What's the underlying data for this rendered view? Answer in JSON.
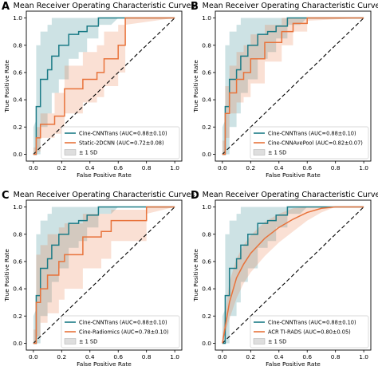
{
  "chart_data": [
    {
      "type": "line",
      "panel_label": "A",
      "title": "Mean Receiver Operating Characteristic Curves",
      "xlabel": "False Positive Rate",
      "ylabel": "True Positive Rate",
      "xlim": [
        -0.05,
        1.05
      ],
      "ylim": [
        -0.05,
        1.05
      ],
      "xticks": [
        "0.0",
        "0.2",
        "0.4",
        "0.6",
        "0.8",
        "1.0"
      ],
      "yticks": [
        "0.0",
        "0.2",
        "0.4",
        "0.6",
        "0.8",
        "1.0"
      ],
      "grid": false,
      "legend_position": "lower-right",
      "band_label": "± 1 SD",
      "series": [
        {
          "name": "Cine-CNNTrans (AUC=0.88±0.10)",
          "color": "#1b7b86",
          "x": [
            0,
            0.02,
            0.02,
            0.05,
            0.05,
            0.1,
            0.1,
            0.13,
            0.13,
            0.18,
            0.18,
            0.25,
            0.25,
            0.32,
            0.32,
            0.38,
            0.38,
            0.46,
            0.46,
            0.55,
            0.6,
            1
          ],
          "y": [
            0,
            0,
            0.35,
            0.35,
            0.55,
            0.55,
            0.62,
            0.62,
            0.72,
            0.72,
            0.8,
            0.8,
            0.88,
            0.88,
            0.9,
            0.9,
            0.94,
            0.94,
            1,
            1,
            1,
            1
          ],
          "upper": [
            0.2,
            0.25,
            0.8,
            0.8,
            0.9,
            0.9,
            0.95,
            0.95,
            1,
            1,
            1,
            1,
            1,
            1,
            1,
            1,
            1,
            1,
            1,
            1,
            1,
            1
          ],
          "lower": [
            0,
            0,
            0,
            0,
            0.2,
            0.2,
            0.3,
            0.3,
            0.45,
            0.45,
            0.55,
            0.55,
            0.7,
            0.7,
            0.75,
            0.75,
            0.85,
            0.85,
            0.95,
            0.95,
            1,
            1
          ]
        },
        {
          "name": "Static-2DCNN (AUC=0.72±0.08)",
          "color": "#e8733b",
          "x": [
            0,
            0.02,
            0.02,
            0.05,
            0.05,
            0.15,
            0.15,
            0.22,
            0.22,
            0.35,
            0.35,
            0.45,
            0.45,
            0.5,
            0.5,
            0.6,
            0.6,
            0.65,
            0.65,
            1
          ],
          "y": [
            0,
            0,
            0.12,
            0.12,
            0.22,
            0.22,
            0.28,
            0.28,
            0.48,
            0.48,
            0.55,
            0.55,
            0.6,
            0.6,
            0.7,
            0.7,
            0.8,
            0.8,
            1,
            1
          ],
          "upper": [
            0.05,
            0.05,
            0.2,
            0.2,
            0.3,
            0.3,
            0.45,
            0.45,
            0.65,
            0.65,
            0.75,
            0.75,
            0.8,
            0.8,
            0.9,
            0.9,
            0.95,
            0.95,
            1,
            1
          ],
          "lower": [
            0,
            0,
            0.02,
            0.02,
            0.12,
            0.12,
            0.15,
            0.15,
            0.3,
            0.3,
            0.38,
            0.38,
            0.42,
            0.42,
            0.5,
            0.5,
            0.6,
            0.6,
            0.95,
            1
          ]
        }
      ]
    },
    {
      "type": "line",
      "panel_label": "B",
      "title": "Mean Receiver Operating Characteristic Curves",
      "xlabel": "False Positive Rate",
      "ylabel": "True Positive Rate",
      "xlim": [
        -0.05,
        1.05
      ],
      "ylim": [
        -0.05,
        1.05
      ],
      "xticks": [
        "0.0",
        "0.2",
        "0.4",
        "0.6",
        "0.8",
        "1.0"
      ],
      "yticks": [
        "0.0",
        "0.2",
        "0.4",
        "0.6",
        "0.8",
        "1.0"
      ],
      "grid": false,
      "legend_position": "lower-right",
      "band_label": "± 1 SD",
      "series": [
        {
          "name": "Cine-CNNTrans (AUC=0.88±0.10)",
          "color": "#1b7b86",
          "x": [
            0,
            0.02,
            0.02,
            0.05,
            0.05,
            0.1,
            0.1,
            0.13,
            0.13,
            0.18,
            0.18,
            0.25,
            0.25,
            0.32,
            0.32,
            0.38,
            0.38,
            0.46,
            0.46,
            0.55,
            0.6,
            1
          ],
          "y": [
            0,
            0,
            0.35,
            0.35,
            0.55,
            0.55,
            0.62,
            0.62,
            0.72,
            0.72,
            0.8,
            0.8,
            0.88,
            0.88,
            0.9,
            0.9,
            0.94,
            0.94,
            1,
            1,
            1,
            1
          ],
          "upper": [
            0.2,
            0.25,
            0.8,
            0.8,
            0.9,
            0.9,
            0.95,
            0.95,
            1,
            1,
            1,
            1,
            1,
            1,
            1,
            1,
            1,
            1,
            1,
            1,
            1,
            1
          ],
          "lower": [
            0,
            0,
            0,
            0,
            0.2,
            0.2,
            0.3,
            0.3,
            0.45,
            0.45,
            0.55,
            0.55,
            0.7,
            0.7,
            0.75,
            0.75,
            0.85,
            0.85,
            0.95,
            0.95,
            1,
            1
          ]
        },
        {
          "name": "Cine-CNNAvePool (AUC=0.82±0.07)",
          "color": "#e8733b",
          "x": [
            0,
            0.02,
            0.02,
            0.05,
            0.05,
            0.1,
            0.1,
            0.15,
            0.15,
            0.2,
            0.2,
            0.3,
            0.3,
            0.42,
            0.42,
            0.5,
            0.5,
            0.6,
            0.6,
            1
          ],
          "y": [
            0,
            0,
            0.3,
            0.3,
            0.45,
            0.45,
            0.55,
            0.55,
            0.6,
            0.6,
            0.7,
            0.7,
            0.82,
            0.82,
            0.9,
            0.9,
            0.96,
            0.96,
            1,
            1
          ],
          "upper": [
            0.1,
            0.1,
            0.5,
            0.5,
            0.65,
            0.65,
            0.75,
            0.75,
            0.8,
            0.8,
            0.88,
            0.88,
            0.95,
            0.95,
            1,
            1,
            1,
            1,
            1,
            1
          ],
          "lower": [
            0,
            0,
            0.12,
            0.12,
            0.3,
            0.3,
            0.38,
            0.38,
            0.42,
            0.42,
            0.52,
            0.52,
            0.68,
            0.68,
            0.8,
            0.8,
            0.9,
            0.9,
            0.98,
            1
          ]
        }
      ]
    },
    {
      "type": "line",
      "panel_label": "C",
      "title": "Mean Receiver Operating Characteristic Curves",
      "xlabel": "False Positive Rate",
      "ylabel": "True Positive Rate",
      "xlim": [
        -0.05,
        1.05
      ],
      "ylim": [
        -0.05,
        1.05
      ],
      "xticks": [
        "0.0",
        "0.2",
        "0.4",
        "0.6",
        "0.8",
        "1.0"
      ],
      "yticks": [
        "0.0",
        "0.2",
        "0.4",
        "0.6",
        "0.8",
        "1.0"
      ],
      "grid": false,
      "legend_position": "lower-right",
      "band_label": "± 1 SD",
      "series": [
        {
          "name": "Cine-CNNTrans (AUC=0.88±0.10)",
          "color": "#1b7b86",
          "x": [
            0,
            0.02,
            0.02,
            0.05,
            0.05,
            0.1,
            0.1,
            0.13,
            0.13,
            0.18,
            0.18,
            0.25,
            0.25,
            0.32,
            0.32,
            0.38,
            0.38,
            0.46,
            0.46,
            0.55,
            0.6,
            1
          ],
          "y": [
            0,
            0,
            0.35,
            0.35,
            0.55,
            0.55,
            0.62,
            0.62,
            0.72,
            0.72,
            0.8,
            0.8,
            0.88,
            0.88,
            0.9,
            0.9,
            0.94,
            0.94,
            1,
            1,
            1,
            1
          ],
          "upper": [
            0.2,
            0.25,
            0.8,
            0.8,
            0.9,
            0.9,
            0.95,
            0.95,
            1,
            1,
            1,
            1,
            1,
            1,
            1,
            1,
            1,
            1,
            1,
            1,
            1,
            1
          ],
          "lower": [
            0,
            0,
            0,
            0,
            0.2,
            0.2,
            0.3,
            0.3,
            0.45,
            0.45,
            0.55,
            0.55,
            0.7,
            0.7,
            0.75,
            0.75,
            0.85,
            0.85,
            0.95,
            0.95,
            1,
            1
          ]
        },
        {
          "name": "Cine-Radiomics (AUC=0.78±0.10)",
          "color": "#e8733b",
          "x": [
            0,
            0.02,
            0.02,
            0.05,
            0.05,
            0.1,
            0.1,
            0.18,
            0.18,
            0.22,
            0.22,
            0.35,
            0.35,
            0.48,
            0.48,
            0.55,
            0.55,
            0.8,
            0.8,
            1
          ],
          "y": [
            0,
            0,
            0.3,
            0.3,
            0.4,
            0.4,
            0.5,
            0.5,
            0.6,
            0.6,
            0.65,
            0.65,
            0.78,
            0.78,
            0.82,
            0.82,
            0.9,
            0.9,
            1,
            1
          ],
          "upper": [
            0.1,
            0.1,
            0.65,
            0.65,
            0.72,
            0.72,
            0.8,
            0.8,
            0.85,
            0.85,
            0.88,
            0.88,
            0.95,
            0.95,
            0.95,
            0.95,
            0.98,
            0.98,
            1,
            1
          ],
          "lower": [
            0,
            0,
            0.05,
            0.05,
            0.15,
            0.15,
            0.22,
            0.22,
            0.32,
            0.32,
            0.4,
            0.4,
            0.55,
            0.55,
            0.62,
            0.62,
            0.75,
            0.75,
            0.95,
            1
          ]
        }
      ]
    },
    {
      "type": "line",
      "panel_label": "D",
      "title": "Mean Receiver Operating Characteristic Curves",
      "xlabel": "False Positive Rate",
      "ylabel": "True Positive Rate",
      "xlim": [
        -0.05,
        1.05
      ],
      "ylim": [
        -0.05,
        1.05
      ],
      "xticks": [
        "0.0",
        "0.2",
        "0.4",
        "0.6",
        "0.8",
        "1.0"
      ],
      "yticks": [
        "0.0",
        "0.2",
        "0.4",
        "0.6",
        "0.8",
        "1.0"
      ],
      "grid": false,
      "legend_position": "lower-right",
      "band_label": "± 1 SD",
      "series": [
        {
          "name": "Cine-CNNTrans (AUC=0.88±0.10)",
          "color": "#1b7b86",
          "x": [
            0,
            0.02,
            0.02,
            0.05,
            0.05,
            0.1,
            0.1,
            0.13,
            0.13,
            0.18,
            0.18,
            0.25,
            0.25,
            0.32,
            0.32,
            0.38,
            0.38,
            0.46,
            0.46,
            0.55,
            0.6,
            1
          ],
          "y": [
            0,
            0,
            0.35,
            0.35,
            0.55,
            0.55,
            0.62,
            0.62,
            0.72,
            0.72,
            0.8,
            0.8,
            0.88,
            0.88,
            0.9,
            0.9,
            0.94,
            0.94,
            1,
            1,
            1,
            1
          ],
          "upper": [
            0.2,
            0.25,
            0.8,
            0.8,
            0.9,
            0.9,
            0.95,
            0.95,
            1,
            1,
            1,
            1,
            1,
            1,
            1,
            1,
            1,
            1,
            1,
            1,
            1,
            1
          ],
          "lower": [
            0,
            0,
            0,
            0,
            0.2,
            0.2,
            0.3,
            0.3,
            0.45,
            0.45,
            0.55,
            0.55,
            0.7,
            0.7,
            0.75,
            0.75,
            0.85,
            0.85,
            0.95,
            0.95,
            1,
            1
          ]
        },
        {
          "name": "ACR TI-RADS (AUC=0.80±0.05)",
          "color": "#e8733b",
          "x": [
            0,
            0.05,
            0.1,
            0.15,
            0.2,
            0.3,
            0.4,
            0.5,
            0.6,
            0.7,
            0.8,
            0.9,
            1
          ],
          "y": [
            0,
            0.3,
            0.48,
            0.58,
            0.66,
            0.77,
            0.85,
            0.91,
            0.96,
            0.99,
            1,
            1,
            1
          ],
          "upper": [
            0.05,
            0.45,
            0.62,
            0.72,
            0.79,
            0.89,
            0.95,
            0.99,
            1,
            1,
            1,
            1,
            1
          ],
          "lower": [
            0,
            0.18,
            0.33,
            0.44,
            0.52,
            0.64,
            0.74,
            0.82,
            0.9,
            0.96,
            1,
            1,
            1
          ]
        }
      ]
    }
  ]
}
